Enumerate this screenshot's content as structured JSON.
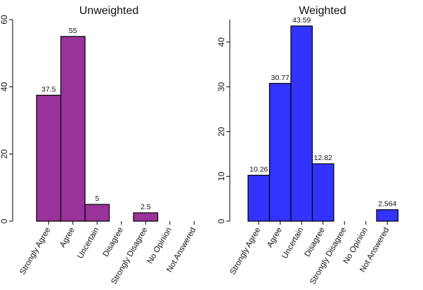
{
  "chart_data": [
    {
      "type": "bar",
      "title": "Unweighted",
      "xlabel": "",
      "ylabel": "",
      "categories": [
        "Strongly Agree",
        "Agree",
        "Uncertain",
        "Disagree",
        "Strongly Disagree",
        "No Opinion",
        "Not Answered"
      ],
      "values": [
        37.5,
        55,
        5,
        0,
        2.5,
        0,
        0
      ],
      "data_labels": [
        "37.5",
        "55",
        "5",
        "",
        "2.5",
        "",
        ""
      ],
      "ylim": [
        0,
        60
      ],
      "yticks": [
        0,
        20,
        40,
        60
      ],
      "bar_color": "#993399",
      "grid": false,
      "legend": "none"
    },
    {
      "type": "bar",
      "title": "Weighted",
      "xlabel": "",
      "ylabel": "",
      "categories": [
        "Strongly Agree",
        "Agree",
        "Uncertain",
        "Disagree",
        "Strongly Disagree",
        "No Opinion",
        "Not Answered"
      ],
      "values": [
        10.26,
        30.77,
        43.59,
        12.82,
        0,
        0,
        2.564
      ],
      "data_labels": [
        "10.26",
        "30.77",
        "43.59",
        "12.82",
        "",
        "",
        "2.564"
      ],
      "ylim": [
        0,
        45
      ],
      "yticks": [
        0,
        10,
        20,
        30,
        40
      ],
      "bar_color": "#3333ff",
      "grid": false,
      "legend": "none"
    }
  ]
}
